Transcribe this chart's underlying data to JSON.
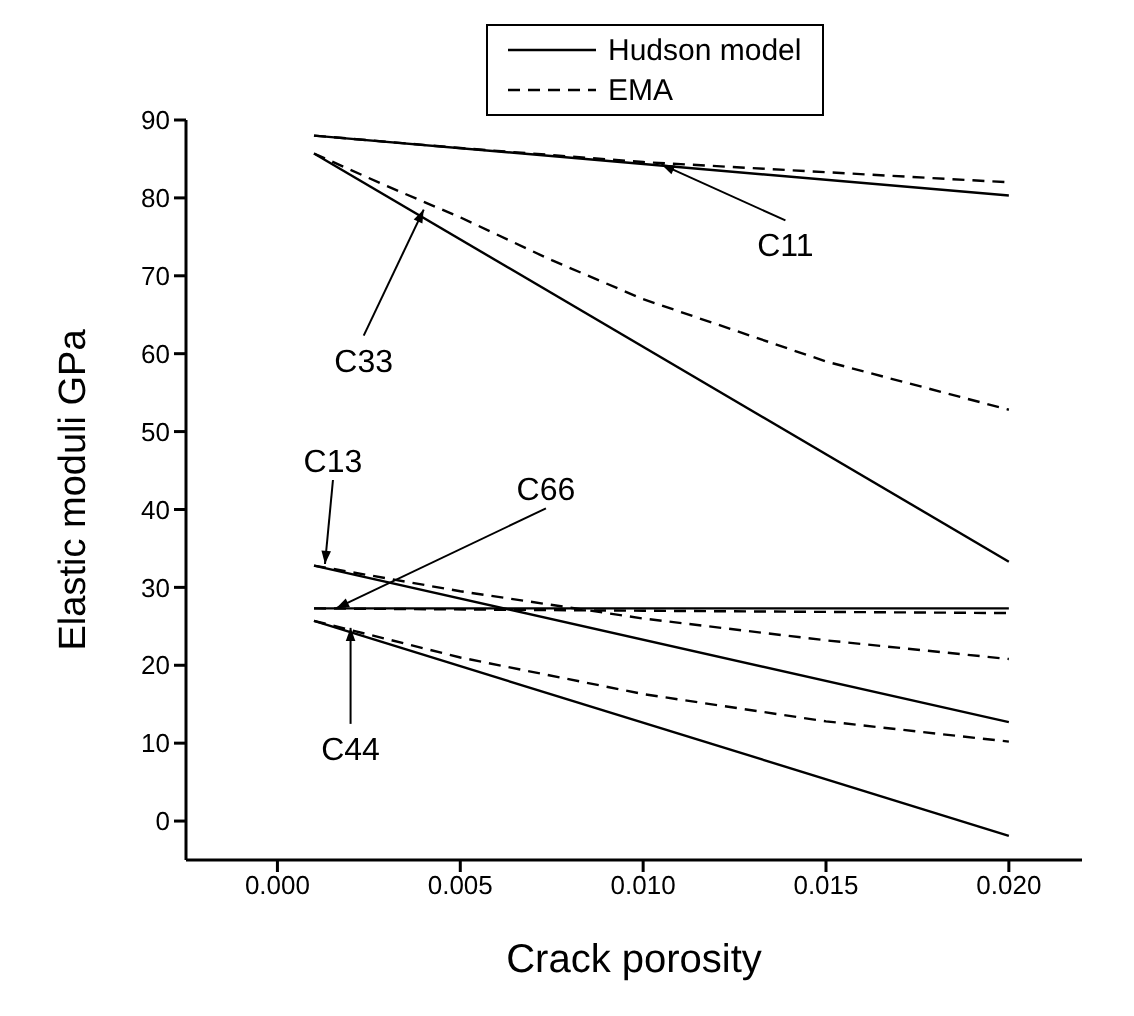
{
  "chart_data": {
    "type": "line",
    "xlabel": "Crack porosity",
    "ylabel": "Elastic moduli GPa",
    "xlim": [
      -0.0025,
      0.022
    ],
    "xticks": [
      {
        "value": 0,
        "label": "0.000"
      },
      {
        "value": 0.005,
        "label": "0.005"
      },
      {
        "value": 0.01,
        "label": "0.010"
      },
      {
        "value": 0.015,
        "label": "0.015"
      },
      {
        "value": 0.02,
        "label": "0.020"
      }
    ],
    "ylim": [
      -5,
      90
    ],
    "yticks": [
      0,
      10,
      20,
      30,
      40,
      50,
      60,
      70,
      80,
      90
    ],
    "legend": "top",
    "marker": "none",
    "series": [
      {
        "name": "Hudson model",
        "color": "#000000",
        "line_style": "solid",
        "x": [
          0.001,
          0.02
        ],
        "values": [
          88,
          80.3
        ]
      },
      {
        "color": "#000000",
        "line_style": "solid",
        "x": [
          0.001,
          0.02
        ],
        "values": [
          85.7,
          33.3
        ]
      },
      {
        "color": "#000000",
        "line_style": "solid",
        "x": [
          0.001,
          0.02
        ],
        "values": [
          32.8,
          12.7
        ]
      },
      {
        "color": "#000000",
        "line_style": "solid",
        "x": [
          0.001,
          0.02
        ],
        "values": [
          27.3,
          27.3
        ]
      },
      {
        "color": "#000000",
        "line_style": "solid",
        "x": [
          0.001,
          0.02
        ],
        "values": [
          25.7,
          -1.9
        ]
      },
      {
        "name": "EMA",
        "color": "#000000",
        "line_style": "dashed",
        "x": [
          0.001,
          0.005,
          0.01,
          0.015,
          0.02
        ],
        "values": [
          88,
          86.4,
          84.6,
          83.3,
          82
        ]
      },
      {
        "color": "#000000",
        "line_style": "dashed",
        "x": [
          0.001,
          0.003,
          0.005,
          0.0075,
          0.01,
          0.015,
          0.02
        ],
        "values": [
          85.7,
          81.5,
          77.5,
          72,
          67,
          59,
          52.8
        ]
      },
      {
        "color": "#000000",
        "line_style": "dashed",
        "x": [
          0.001,
          0.005,
          0.01,
          0.015,
          0.02
        ],
        "values": [
          32.8,
          29.5,
          26,
          23.2,
          20.8
        ]
      },
      {
        "color": "#000000",
        "line_style": "dashed",
        "x": [
          0.001,
          0.01,
          0.02
        ],
        "values": [
          27.3,
          27,
          26.7
        ]
      },
      {
        "color": "#000000",
        "line_style": "dashed",
        "x": [
          0.001,
          0.005,
          0.01,
          0.015,
          0.02
        ],
        "values": [
          25.7,
          21,
          16.3,
          12.8,
          10.2
        ]
      }
    ],
    "annotations": [
      {
        "text": "C11",
        "x": 0.0105,
        "y": 84.3
      },
      {
        "text": "C33",
        "x": 0.004,
        "y": 78.5
      },
      {
        "text": "C13",
        "x": 0.0013,
        "y": 33
      },
      {
        "text": "C66",
        "x": 0.0016,
        "y": 27.3
      },
      {
        "text": "C44",
        "x": 0.002,
        "y": 24.8
      }
    ]
  }
}
